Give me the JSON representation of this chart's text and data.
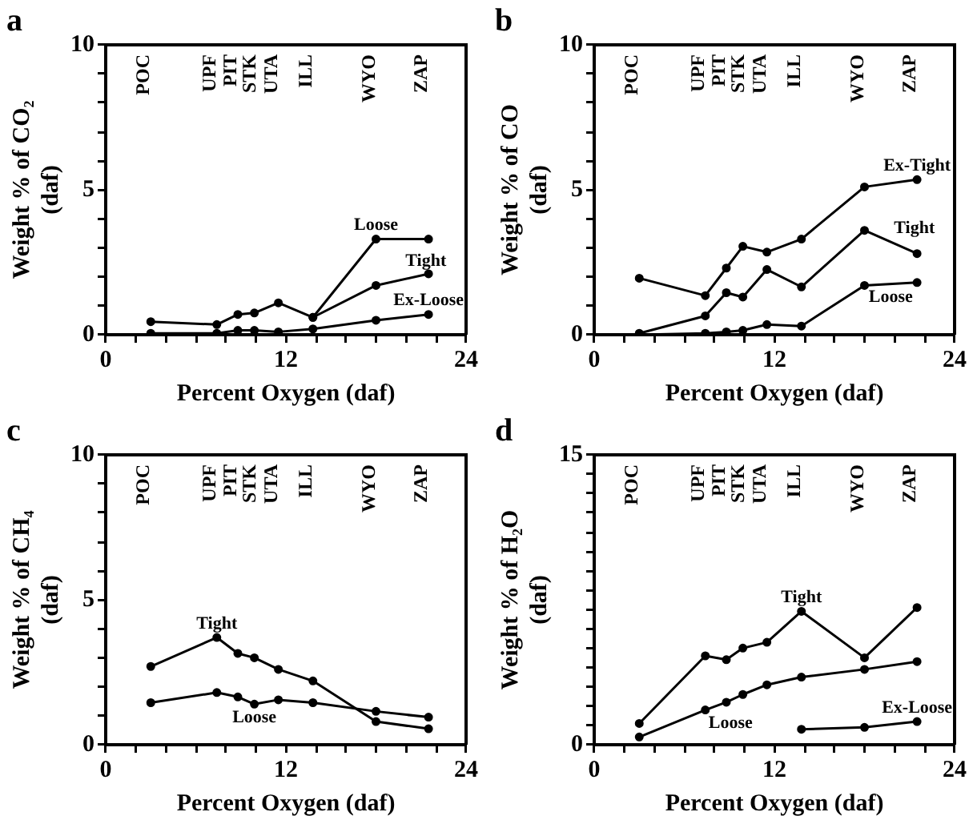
{
  "chart_data": [
    {
      "type": "line",
      "title": "a",
      "xlabel": "Percent Oxygen (daf)",
      "ylabel": "Weight % of CO₂\n(daf)",
      "xlim": [
        0,
        24
      ],
      "ylim": [
        0,
        10
      ],
      "marker": "circle",
      "grid": false,
      "xticks": [
        0,
        {
          "value": 2,
          "label": null
        },
        {
          "value": 4,
          "label": null
        },
        {
          "value": 6,
          "label": null
        },
        {
          "value": 8,
          "label": null
        },
        {
          "value": 10,
          "label": null
        },
        12,
        {
          "value": 14,
          "label": null
        },
        {
          "value": 16,
          "label": null
        },
        {
          "value": 18,
          "label": null
        },
        {
          "value": 20,
          "label": null
        },
        {
          "value": 22,
          "label": null
        },
        24
      ],
      "yticks": [
        0,
        {
          "value": 1,
          "label": null
        },
        {
          "value": 2,
          "label": null
        },
        {
          "value": 3,
          "label": null
        },
        {
          "value": 4,
          "label": null
        },
        5,
        {
          "value": 6,
          "label": null
        },
        {
          "value": 7,
          "label": null
        },
        {
          "value": 8,
          "label": null
        },
        {
          "value": 9,
          "label": null
        },
        10
      ],
      "series": [
        {
          "name": "Loose",
          "color": "#000000",
          "x": [
            3,
            7.4,
            8.8,
            9.9,
            11.5,
            13.8,
            18,
            21.5
          ],
          "values": [
            0.45,
            0.35,
            0.7,
            0.75,
            1.1,
            0.6,
            3.3,
            3.3
          ]
        },
        {
          "name": "Tight",
          "color": "#000000",
          "x": [
            13.8,
            18,
            21.5
          ],
          "values": [
            0.6,
            1.7,
            2.1
          ]
        },
        {
          "name": "Ex-Loose",
          "color": "#000000",
          "x": [
            3,
            7.4,
            8.8,
            9.9,
            11.5,
            13.8,
            18,
            21.5
          ],
          "values": [
            0.05,
            0.05,
            0.15,
            0.15,
            0.1,
            0.2,
            0.5,
            0.7
          ]
        }
      ],
      "annotations": [
        "POC",
        "UPF",
        "PIT",
        "STK",
        "UTA",
        "ILL",
        "WYO",
        "ZAP"
      ]
    },
    {
      "type": "line",
      "title": "b",
      "xlabel": "Percent Oxygen (daf)",
      "ylabel": "Weight % of CO\n(daf)",
      "xlim": [
        0,
        24
      ],
      "ylim": [
        0,
        10
      ],
      "marker": "circle",
      "grid": false,
      "xticks": [
        0,
        {
          "value": 2,
          "label": null
        },
        {
          "value": 4,
          "label": null
        },
        {
          "value": 6,
          "label": null
        },
        {
          "value": 8,
          "label": null
        },
        {
          "value": 10,
          "label": null
        },
        12,
        {
          "value": 14,
          "label": null
        },
        {
          "value": 16,
          "label": null
        },
        {
          "value": 18,
          "label": null
        },
        {
          "value": 20,
          "label": null
        },
        {
          "value": 22,
          "label": null
        },
        24
      ],
      "yticks": [
        0,
        {
          "value": 1,
          "label": null
        },
        {
          "value": 2,
          "label": null
        },
        {
          "value": 3,
          "label": null
        },
        {
          "value": 4,
          "label": null
        },
        5,
        {
          "value": 6,
          "label": null
        },
        {
          "value": 7,
          "label": null
        },
        {
          "value": 8,
          "label": null
        },
        {
          "value": 9,
          "label": null
        },
        10
      ],
      "series": [
        {
          "name": "Ex-Tight",
          "color": "#000000",
          "x": [
            3,
            7.4,
            8.8,
            9.9,
            11.5,
            13.8,
            18,
            21.5
          ],
          "values": [
            1.95,
            1.35,
            2.3,
            3.05,
            2.85,
            3.3,
            5.1,
            5.35
          ]
        },
        {
          "name": "Tight",
          "color": "#000000",
          "x": [
            3,
            7.4,
            8.8,
            9.9,
            11.5,
            13.8,
            18,
            21.5
          ],
          "values": [
            0.05,
            0.65,
            1.45,
            1.3,
            2.25,
            1.65,
            3.6,
            2.8
          ]
        },
        {
          "name": "Loose",
          "color": "#000000",
          "x": [
            3,
            7.4,
            8.8,
            9.9,
            11.5,
            13.8,
            18,
            21.5
          ],
          "values": [
            0,
            0.05,
            0.1,
            0.15,
            0.35,
            0.3,
            1.7,
            1.8
          ]
        }
      ],
      "annotations": [
        "POC",
        "UPF",
        "PIT",
        "STK",
        "UTA",
        "ILL",
        "WYO",
        "ZAP"
      ]
    },
    {
      "type": "line",
      "title": "c",
      "xlabel": "Percent Oxygen (daf)",
      "ylabel": "Weight % of CH₄\n(daf)",
      "xlim": [
        0,
        24
      ],
      "ylim": [
        0,
        10
      ],
      "marker": "circle",
      "grid": false,
      "xticks": [
        0,
        {
          "value": 2,
          "label": null
        },
        {
          "value": 4,
          "label": null
        },
        {
          "value": 6,
          "label": null
        },
        {
          "value": 8,
          "label": null
        },
        {
          "value": 10,
          "label": null
        },
        12,
        {
          "value": 14,
          "label": null
        },
        {
          "value": 16,
          "label": null
        },
        {
          "value": 18,
          "label": null
        },
        {
          "value": 20,
          "label": null
        },
        {
          "value": 22,
          "label": null
        },
        24
      ],
      "yticks": [
        0,
        {
          "value": 1,
          "label": null
        },
        {
          "value": 2,
          "label": null
        },
        {
          "value": 3,
          "label": null
        },
        {
          "value": 4,
          "label": null
        },
        5,
        {
          "value": 6,
          "label": null
        },
        {
          "value": 7,
          "label": null
        },
        {
          "value": 8,
          "label": null
        },
        {
          "value": 9,
          "label": null
        },
        10
      ],
      "series": [
        {
          "name": "Tight",
          "color": "#000000",
          "x": [
            3,
            7.4,
            8.8,
            9.9,
            11.5,
            13.8,
            18,
            21.5
          ],
          "values": [
            2.7,
            3.7,
            3.15,
            3.0,
            2.6,
            2.2,
            0.8,
            0.55
          ]
        },
        {
          "name": "Loose",
          "color": "#000000",
          "x": [
            3,
            7.4,
            8.8,
            9.9,
            11.5,
            13.8,
            18,
            21.5
          ],
          "values": [
            1.45,
            1.8,
            1.65,
            1.4,
            1.55,
            1.45,
            1.15,
            0.95
          ]
        }
      ],
      "annotations": [
        "POC",
        "UPF",
        "PIT",
        "STK",
        "UTA",
        "ILL",
        "WYO",
        "ZAP"
      ]
    },
    {
      "type": "line",
      "title": "d",
      "xlabel": "Percent Oxygen (daf)",
      "ylabel": "Weight % of H₂O\n(daf)",
      "xlim": [
        0,
        24
      ],
      "ylim": [
        0,
        15
      ],
      "marker": "circle",
      "grid": false,
      "xticks": [
        0,
        {
          "value": 2,
          "label": null
        },
        {
          "value": 4,
          "label": null
        },
        {
          "value": 6,
          "label": null
        },
        {
          "value": 8,
          "label": null
        },
        {
          "value": 10,
          "label": null
        },
        12,
        {
          "value": 14,
          "label": null
        },
        {
          "value": 16,
          "label": null
        },
        {
          "value": 18,
          "label": null
        },
        {
          "value": 20,
          "label": null
        },
        {
          "value": 22,
          "label": null
        },
        24
      ],
      "yticks": [
        0,
        {
          "value": 1,
          "label": null
        },
        {
          "value": 2,
          "label": null
        },
        {
          "value": 3,
          "label": null
        },
        {
          "value": 4,
          "label": null
        },
        {
          "value": 5,
          "label": null
        },
        {
          "value": 6,
          "label": null
        },
        {
          "value": 7,
          "label": null
        },
        {
          "value": 8,
          "label": null
        },
        {
          "value": 9,
          "label": null
        },
        {
          "value": 10,
          "label": null
        },
        {
          "value": 11,
          "label": null
        },
        {
          "value": 12,
          "label": null
        },
        {
          "value": 13,
          "label": null
        },
        {
          "value": 14,
          "label": null
        },
        15
      ],
      "series": [
        {
          "name": "Tight",
          "color": "#000000",
          "x": [
            3,
            7.4,
            8.8,
            9.9,
            11.5,
            13.8,
            18,
            21.5
          ],
          "values": [
            1.1,
            4.6,
            4.4,
            5.0,
            5.3,
            6.9,
            4.5,
            7.1
          ]
        },
        {
          "name": "Loose",
          "color": "#000000",
          "x": [
            3,
            7.4,
            8.8,
            9.9,
            11.5,
            13.8,
            18,
            21.5
          ],
          "values": [
            0.4,
            1.8,
            2.2,
            2.6,
            3.1,
            3.5,
            3.9,
            4.3
          ]
        },
        {
          "name": "Ex-Loose",
          "color": "#000000",
          "x": [
            13.8,
            18,
            21.5
          ],
          "values": [
            0.8,
            0.9,
            1.2
          ]
        }
      ],
      "annotations": [
        "POC",
        "UPF",
        "PIT",
        "STK",
        "UTA",
        "ILL",
        "WYO",
        "ZAP"
      ]
    }
  ]
}
